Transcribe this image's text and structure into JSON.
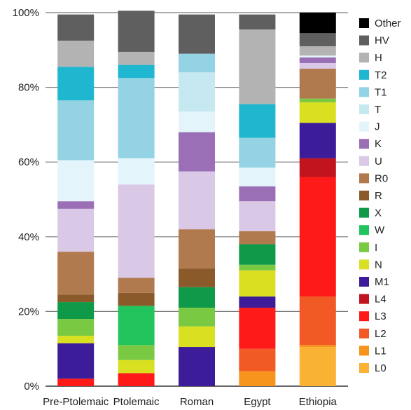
{
  "chart_data": {
    "type": "bar",
    "stacked": true,
    "categories": [
      "Pre-Ptolemaic",
      "Ptolemaic",
      "Roman",
      "Egypt",
      "Ethiopia"
    ],
    "ylim": [
      0,
      100
    ],
    "yticks": [
      "0%",
      "20%",
      "40%",
      "60%",
      "80%",
      "100%"
    ],
    "ytick_values": [
      0,
      20,
      40,
      60,
      80,
      100
    ],
    "grid": "horizontal",
    "legend_position": "right",
    "series": [
      {
        "name": "L0",
        "color": "#F9B233",
        "values": [
          0,
          0,
          0,
          0,
          10.5
        ]
      },
      {
        "name": "L1",
        "color": "#F7941D",
        "values": [
          0,
          0,
          0,
          4,
          0.5
        ]
      },
      {
        "name": "L2",
        "color": "#F15A24",
        "values": [
          0,
          0,
          0,
          6,
          13
        ]
      },
      {
        "name": "L3",
        "color": "#FF1A1A",
        "values": [
          2,
          3.5,
          0,
          11,
          32
        ]
      },
      {
        "name": "L4",
        "color": "#C1141E",
        "values": [
          0,
          0,
          0,
          0,
          5
        ]
      },
      {
        "name": "M1",
        "color": "#3D1C99",
        "values": [
          9.5,
          0,
          10.5,
          3,
          9.5
        ]
      },
      {
        "name": "N",
        "color": "#D9E021",
        "values": [
          2,
          3.5,
          5.5,
          7,
          5.5
        ]
      },
      {
        "name": "I",
        "color": "#7AC943",
        "values": [
          4.5,
          4,
          5,
          1.5,
          1
        ]
      },
      {
        "name": "W",
        "color": "#22C45E",
        "values": [
          0,
          10.5,
          0,
          0,
          0
        ]
      },
      {
        "name": "X",
        "color": "#0E9A48",
        "values": [
          4.5,
          0,
          5.5,
          5.5,
          0
        ]
      },
      {
        "name": "R",
        "color": "#8B5A2B",
        "values": [
          2,
          3.5,
          5,
          0,
          0
        ]
      },
      {
        "name": "R0",
        "color": "#B07A4E",
        "values": [
          11.5,
          4,
          10.5,
          3.5,
          8
        ]
      },
      {
        "name": "U",
        "color": "#D9C8E6",
        "values": [
          11.5,
          25,
          15.5,
          8,
          1.5
        ]
      },
      {
        "name": "K",
        "color": "#9B6FB5",
        "values": [
          2,
          0,
          10.5,
          4,
          1.5
        ]
      },
      {
        "name": "J",
        "color": "#E3F5FB",
        "values": [
          11,
          7,
          5.5,
          5,
          0.5
        ]
      },
      {
        "name": "T",
        "color": "#C6E8F0",
        "values": [
          0,
          0,
          10.5,
          0,
          0
        ]
      },
      {
        "name": "T1",
        "color": "#93D3E3",
        "values": [
          16,
          21.5,
          5,
          8,
          0
        ]
      },
      {
        "name": "T2",
        "color": "#1FB6D0",
        "values": [
          9,
          3.5,
          0,
          9,
          0
        ]
      },
      {
        "name": "H",
        "color": "#B3B3B3",
        "values": [
          7,
          3.5,
          0,
          20,
          2.5
        ]
      },
      {
        "name": "HV",
        "color": "#5F5F5F",
        "values": [
          7,
          11,
          10.5,
          4,
          3.5
        ]
      },
      {
        "name": "Other",
        "color": "#000000",
        "values": [
          0,
          0,
          0,
          0,
          5.5
        ]
      }
    ]
  }
}
